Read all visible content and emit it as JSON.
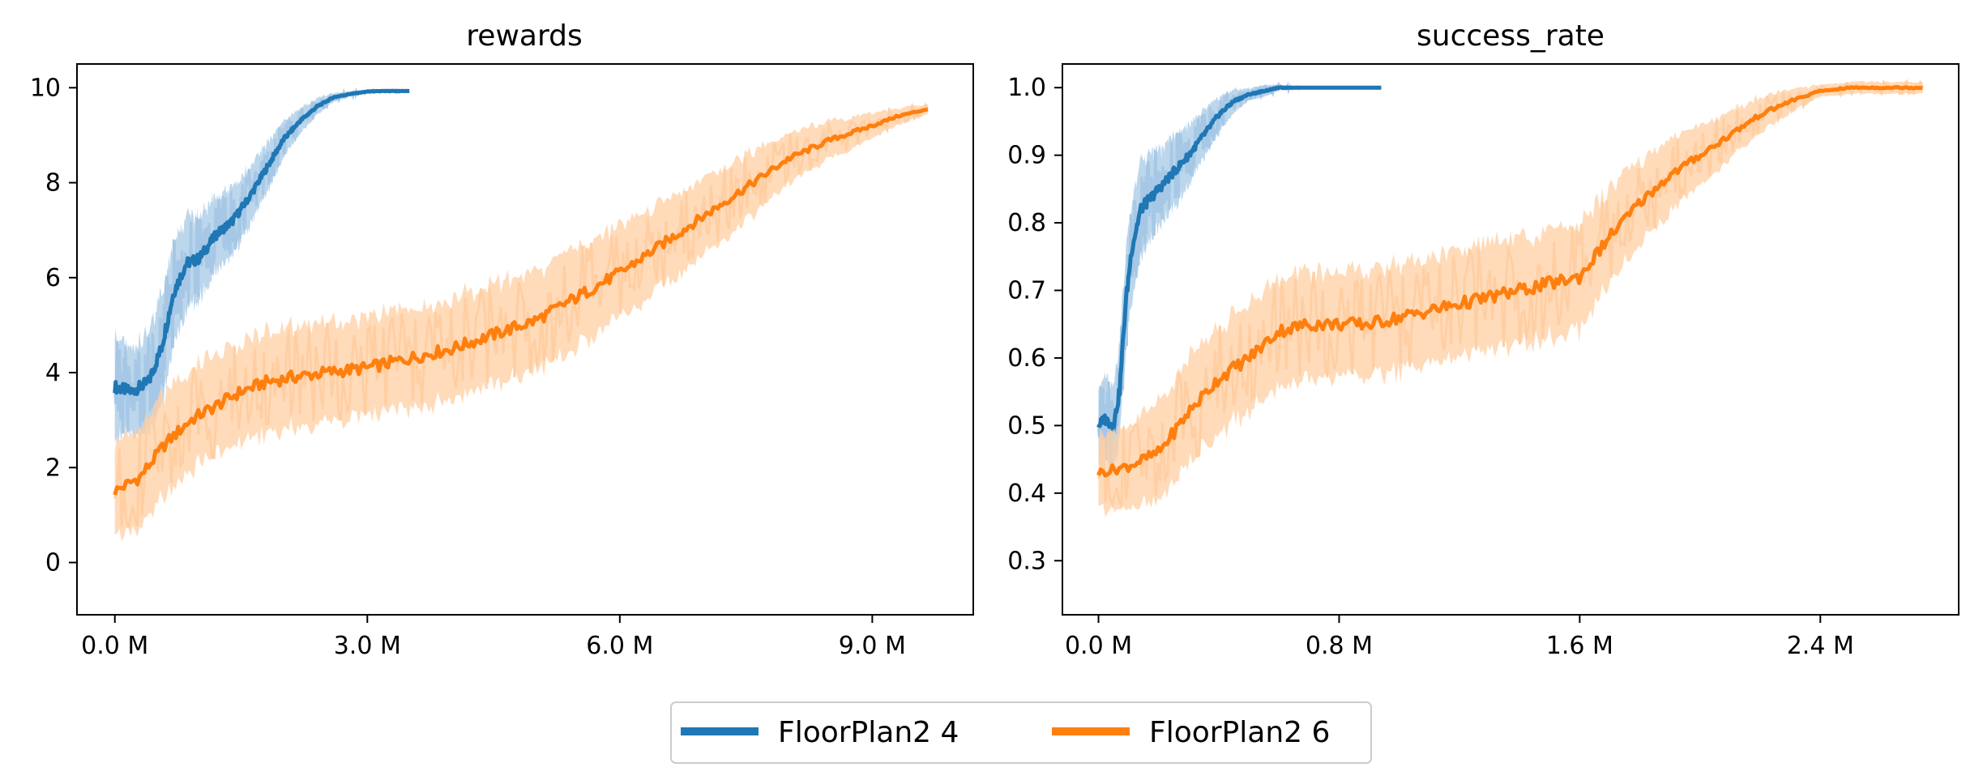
{
  "figure": {
    "legend": {
      "placement": "bottom-center",
      "entries": [
        {
          "label": "FloorPlan2 4",
          "color": "#1f77b4"
        },
        {
          "label": "FloorPlan2 6",
          "color": "#ff7f0e"
        }
      ]
    }
  },
  "chart_data": [
    {
      "type": "line",
      "title": "rewards",
      "xlabel": "",
      "ylabel": "",
      "xlim": [
        -0.45,
        10.2
      ],
      "ylim": [
        -1.1,
        10.5
      ],
      "x_unit": "M",
      "xticks": [
        0,
        3,
        6,
        9
      ],
      "xtick_labels": [
        "0.0 M",
        "3.0 M",
        "6.0 M",
        "9.0 M"
      ],
      "yticks": [
        0,
        2,
        4,
        6,
        8,
        10
      ],
      "ytick_labels": [
        "0",
        "2",
        "4",
        "6",
        "8",
        "10"
      ],
      "grid": false,
      "series": [
        {
          "name": "FloorPlan2 4",
          "color": "#1f77b4",
          "band_color": "#a6c8e6",
          "x": [
            0.0,
            0.2,
            0.4,
            0.55,
            0.7,
            0.85,
            1.0,
            1.2,
            1.4,
            1.6,
            1.8,
            2.0,
            2.2,
            2.4,
            2.6,
            2.8,
            3.0,
            3.2,
            3.5
          ],
          "mean": [
            3.7,
            3.6,
            3.8,
            4.5,
            5.7,
            6.3,
            6.4,
            6.9,
            7.2,
            7.7,
            8.3,
            8.9,
            9.3,
            9.6,
            9.8,
            9.87,
            9.92,
            9.93,
            9.93
          ],
          "band": [
            1.2,
            1.0,
            1.2,
            1.3,
            1.2,
            1.1,
            1.0,
            0.9,
            0.8,
            0.7,
            0.6,
            0.45,
            0.3,
            0.2,
            0.1,
            0.06,
            0.04,
            0.03,
            0.02
          ]
        },
        {
          "name": "FloorPlan2 6",
          "color": "#ff7f0e",
          "band_color": "#ffcfa3",
          "x": [
            0.0,
            0.3,
            0.6,
            0.9,
            1.2,
            1.5,
            1.8,
            2.1,
            2.5,
            3.0,
            3.5,
            4.0,
            4.5,
            5.0,
            5.5,
            6.0,
            6.5,
            7.0,
            7.5,
            8.0,
            8.5,
            9.0,
            9.3,
            9.66
          ],
          "mean": [
            1.5,
            1.8,
            2.5,
            3.0,
            3.3,
            3.6,
            3.8,
            3.9,
            4.0,
            4.1,
            4.3,
            4.5,
            4.8,
            5.1,
            5.6,
            6.1,
            6.7,
            7.3,
            7.9,
            8.5,
            8.9,
            9.2,
            9.4,
            9.55
          ],
          "band": [
            1.1,
            1.2,
            1.2,
            1.2,
            1.2,
            1.2,
            1.2,
            1.2,
            1.2,
            1.2,
            1.2,
            1.2,
            1.2,
            1.2,
            1.2,
            1.1,
            1.0,
            0.9,
            0.8,
            0.6,
            0.45,
            0.3,
            0.2,
            0.12
          ]
        }
      ]
    },
    {
      "type": "line",
      "title": "success_rate",
      "xlabel": "",
      "ylabel": "",
      "xlim": [
        -0.12,
        2.86
      ],
      "ylim": [
        0.22,
        1.035
      ],
      "x_unit": "M",
      "xticks": [
        0,
        0.8,
        1.6,
        2.4
      ],
      "xtick_labels": [
        "0.0 M",
        "0.8 M",
        "1.6 M",
        "2.4 M"
      ],
      "yticks": [
        0.3,
        0.4,
        0.5,
        0.6,
        0.7,
        0.8,
        0.9,
        1.0
      ],
      "ytick_labels": [
        "0.3",
        "0.4",
        "0.5",
        "0.6",
        "0.7",
        "0.8",
        "0.9",
        "1.0"
      ],
      "grid": false,
      "series": [
        {
          "name": "FloorPlan2 4",
          "color": "#1f77b4",
          "band_color": "#a6c8e6",
          "x": [
            0.0,
            0.02,
            0.05,
            0.07,
            0.09,
            0.11,
            0.14,
            0.18,
            0.22,
            0.26,
            0.3,
            0.35,
            0.4,
            0.45,
            0.5,
            0.55,
            0.6,
            0.7,
            0.8,
            0.94
          ],
          "mean": [
            0.5,
            0.51,
            0.5,
            0.55,
            0.68,
            0.76,
            0.82,
            0.84,
            0.86,
            0.88,
            0.9,
            0.93,
            0.96,
            0.98,
            0.99,
            0.995,
            1.0,
            1.0,
            1.0,
            1.0
          ],
          "band": [
            0.06,
            0.07,
            0.07,
            0.08,
            0.09,
            0.08,
            0.08,
            0.07,
            0.06,
            0.06,
            0.05,
            0.04,
            0.03,
            0.02,
            0.01,
            0.01,
            0.005,
            0.0,
            0.0,
            0.0
          ]
        },
        {
          "name": "FloorPlan2 6",
          "color": "#ff7f0e",
          "band_color": "#ffcfa3",
          "x": [
            0.0,
            0.1,
            0.2,
            0.3,
            0.4,
            0.5,
            0.6,
            0.7,
            0.8,
            0.9,
            1.0,
            1.1,
            1.2,
            1.3,
            1.4,
            1.5,
            1.6,
            1.7,
            1.8,
            1.9,
            2.0,
            2.1,
            2.2,
            2.3,
            2.4,
            2.5,
            2.6,
            2.74
          ],
          "mean": [
            0.43,
            0.44,
            0.46,
            0.52,
            0.57,
            0.6,
            0.64,
            0.65,
            0.65,
            0.65,
            0.66,
            0.67,
            0.68,
            0.69,
            0.7,
            0.71,
            0.72,
            0.78,
            0.83,
            0.87,
            0.9,
            0.93,
            0.96,
            0.98,
            0.995,
            1.0,
            1.0,
            1.0
          ],
          "band": [
            0.06,
            0.07,
            0.08,
            0.09,
            0.09,
            0.09,
            0.09,
            0.09,
            0.09,
            0.09,
            0.09,
            0.09,
            0.09,
            0.09,
            0.09,
            0.09,
            0.09,
            0.08,
            0.07,
            0.06,
            0.05,
            0.04,
            0.03,
            0.02,
            0.01,
            0.01,
            0.01,
            0.01
          ]
        }
      ]
    }
  ]
}
